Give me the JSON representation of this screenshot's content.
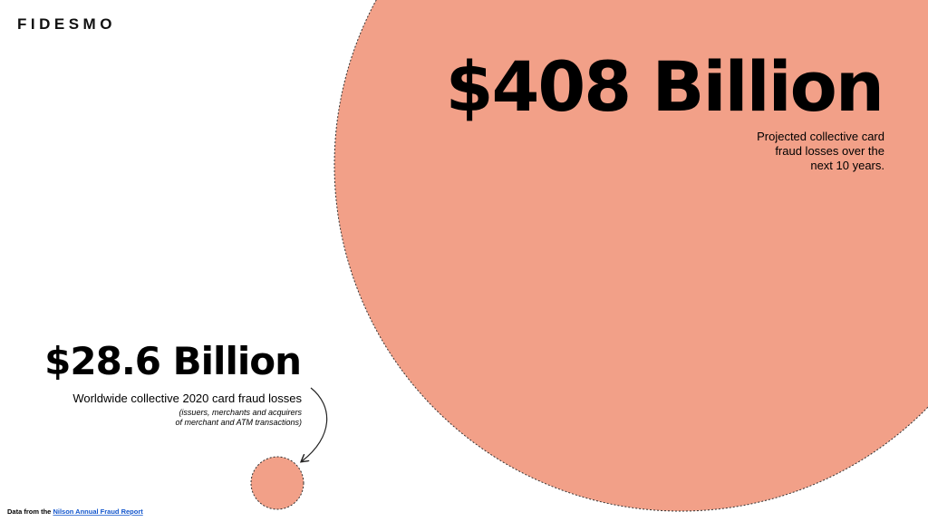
{
  "logo": "FIDESMO",
  "big_stat": {
    "value": "$408 Billion",
    "description": [
      "Projected collective card",
      "fraud losses over the",
      "next 10 years."
    ]
  },
  "small_stat": {
    "value": "$28.6 Billion",
    "description": "Worldwide collective 2020 card fraud losses",
    "note": [
      "(issuers, merchants and acquirers",
      "of merchant and ATM transactions)"
    ]
  },
  "footer": {
    "prefix": "Data from the",
    "link": "Nilson Annual Fraud Report"
  }
}
